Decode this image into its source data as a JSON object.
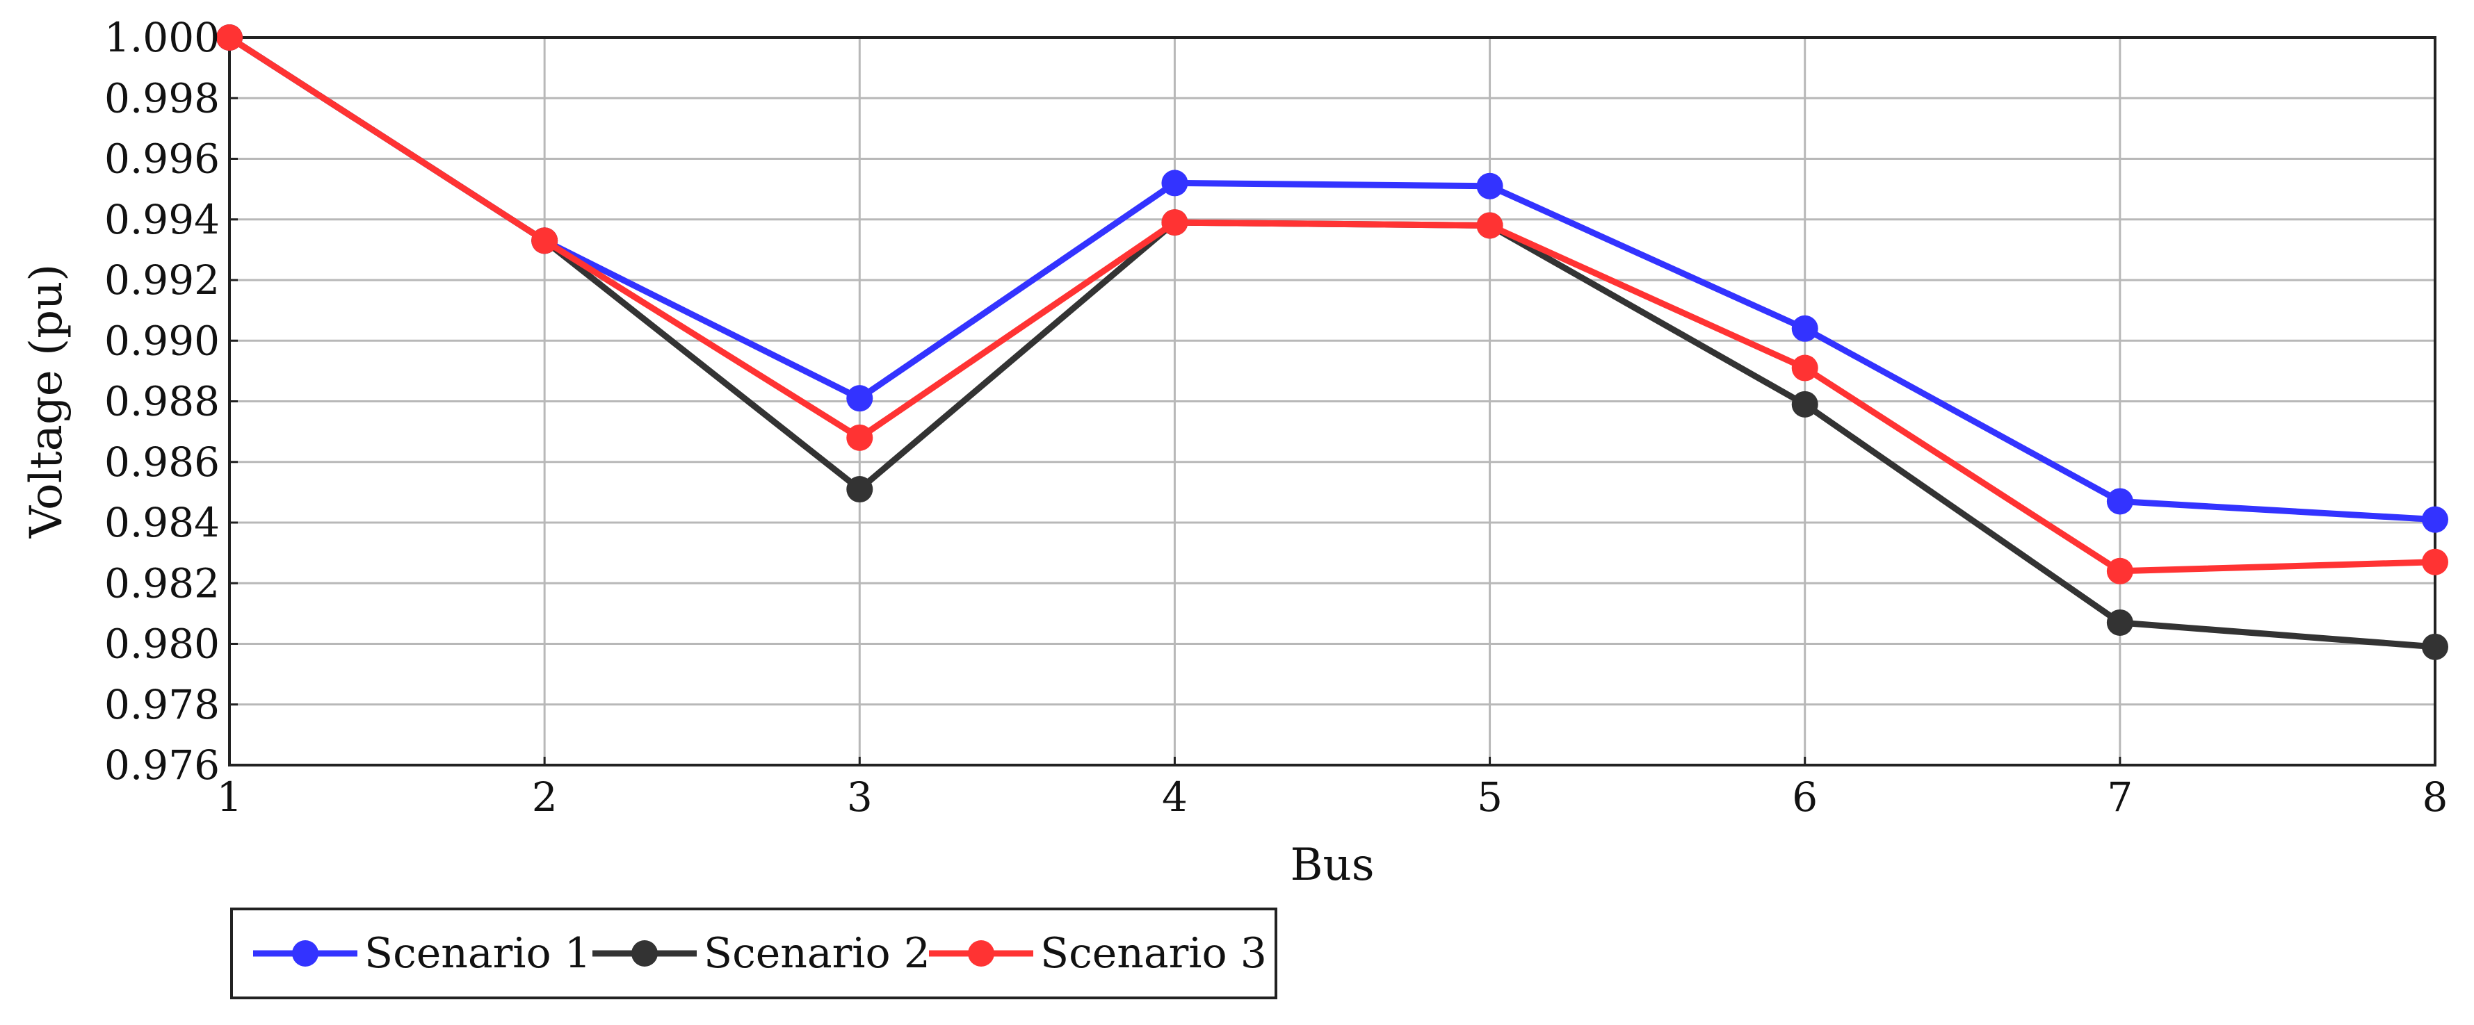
{
  "chart_data": {
    "type": "line",
    "xlabel": "Bus",
    "ylabel": "Voltage (pu)",
    "x": [
      1,
      2,
      3,
      4,
      5,
      6,
      7,
      8
    ],
    "xticks": [
      "1",
      "2",
      "3",
      "4",
      "5",
      "6",
      "7",
      "8"
    ],
    "xlim": [
      1,
      8
    ],
    "ylim": [
      0.976,
      1.0
    ],
    "yticks": [
      "0.976",
      "0.978",
      "0.980",
      "0.982",
      "0.984",
      "0.986",
      "0.988",
      "0.990",
      "0.992",
      "0.994",
      "0.996",
      "0.998",
      "1.000"
    ],
    "grid": true,
    "legend_position": "bottom-left, below plot",
    "series": [
      {
        "name": "Scenario 1",
        "color": "#3333ff",
        "values": [
          1.0,
          0.9933,
          0.9881,
          0.9952,
          0.9951,
          0.9904,
          0.9847,
          0.9841
        ]
      },
      {
        "name": "Scenario 2",
        "color": "#333333",
        "values": [
          1.0,
          0.9933,
          0.9851,
          0.9939,
          0.9938,
          0.9879,
          0.9807,
          0.9799
        ]
      },
      {
        "name": "Scenario 3",
        "color": "#ff3333",
        "values": [
          1.0,
          0.9933,
          0.9868,
          0.9939,
          0.9938,
          0.9891,
          0.9824,
          0.9827
        ]
      }
    ]
  }
}
